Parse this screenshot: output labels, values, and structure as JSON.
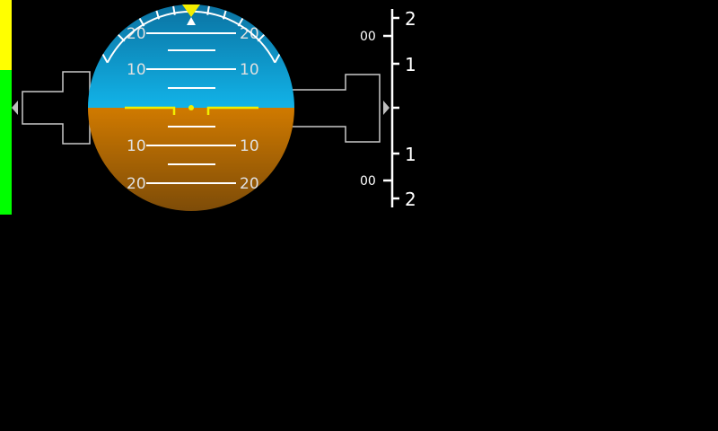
{
  "colors": {
    "background": "#000000",
    "sky_top": "#0a6f9e",
    "sky_bottom": "#12b3e8",
    "ground_top": "#d07a00",
    "ground_bottom": "#7a4a08",
    "aircraft_symbol": "#f2ee00",
    "bank_pointer": "#f2ee00",
    "scale": "#ffffff",
    "outline": "#c9c9c9",
    "speed_tape_upper": "#ffff00",
    "speed_tape_lower": "#00ff00"
  },
  "attitude": {
    "pitch_labels": {
      "up_20": "20",
      "up_10_left": "10",
      "up_10_right": "10",
      "down_10_left": "10",
      "down_10_right": "10",
      "down_20": "20"
    }
  },
  "vsi": {
    "ticks": {
      "top2": "2",
      "top1": "1",
      "zero": "",
      "bot1": "1",
      "bot2": "2"
    },
    "side_labels": {
      "upper": "00",
      "lower": "00"
    }
  }
}
